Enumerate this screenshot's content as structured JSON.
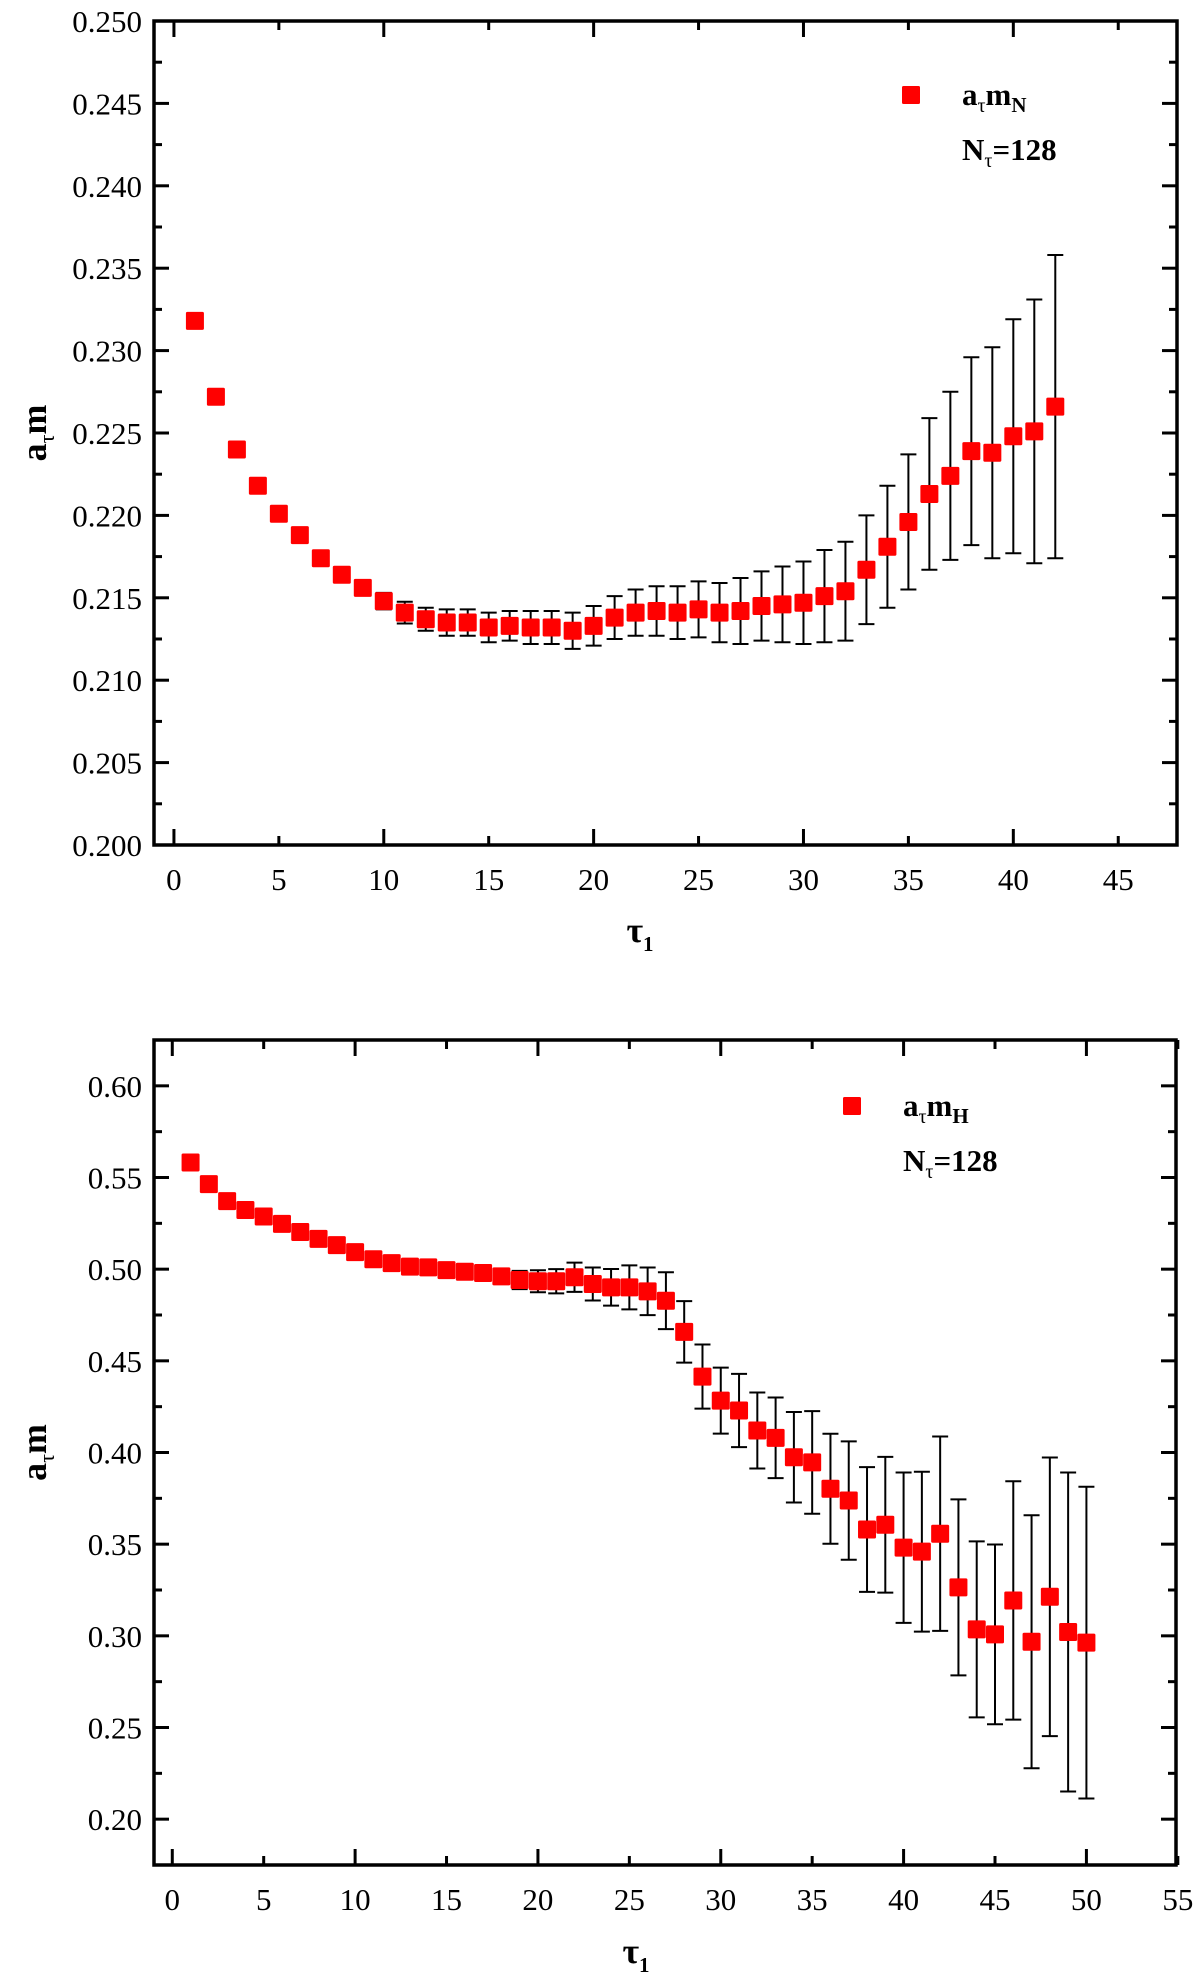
{
  "chart_data": [
    {
      "type": "scatter",
      "panel": "top",
      "title": "",
      "xlabel": "τ",
      "xlabel_sub": "1",
      "ylabel": "a",
      "ylabel_sub": "τ",
      "ylabel_tail": "m",
      "xlim": [
        -0.95,
        47.8
      ],
      "ylim": [
        0.2,
        0.25
      ],
      "x_ticks": [
        0,
        5,
        10,
        15,
        20,
        25,
        30,
        35,
        40,
        45
      ],
      "x_tick_labels": [
        "0",
        "5",
        "10",
        "15",
        "20",
        "25",
        "30",
        "35",
        "40",
        "45"
      ],
      "y_ticks": [
        0.2,
        0.205,
        0.21,
        0.215,
        0.22,
        0.225,
        0.23,
        0.235,
        0.24,
        0.245,
        0.25
      ],
      "y_tick_labels": [
        "0.200",
        "0.205",
        "0.210",
        "0.215",
        "0.220",
        "0.225",
        "0.230",
        "0.235",
        "0.240",
        "0.245",
        "0.250"
      ],
      "grid": false,
      "legend_position": "top-right",
      "legend": {
        "series_main": "a",
        "series_sub1": "τ",
        "series_mid": "m",
        "series_sub2": "N",
        "note_main": "N",
        "note_sub": "τ",
        "note_tail": "=128"
      },
      "marker_color": "#ff0000",
      "series": [
        {
          "name": "aτmN",
          "x": [
            1,
            2,
            3,
            4,
            5,
            6,
            7,
            8,
            9,
            10,
            11,
            12,
            13,
            14,
            15,
            16,
            17,
            18,
            19,
            20,
            21,
            22,
            23,
            24,
            25,
            26,
            27,
            28,
            29,
            30,
            31,
            32,
            33,
            34,
            35,
            36,
            37,
            38,
            39,
            40,
            41,
            42
          ],
          "y": [
            0.2318,
            0.2272,
            0.224,
            0.2218,
            0.2201,
            0.2188,
            0.2174,
            0.2164,
            0.2156,
            0.2148,
            0.2141,
            0.2137,
            0.2135,
            0.2135,
            0.2132,
            0.2133,
            0.2132,
            0.2132,
            0.213,
            0.2133,
            0.2138,
            0.2141,
            0.2142,
            0.2141,
            0.2143,
            0.2141,
            0.2142,
            0.2145,
            0.2146,
            0.2147,
            0.2151,
            0.2154,
            0.2167,
            0.2181,
            0.2196,
            0.2213,
            0.2224,
            0.2239,
            0.2238,
            0.2248,
            0.2251,
            0.2266
          ],
          "yerr": [
            0.0002,
            0.0002,
            0.0002,
            0.0002,
            0.0002,
            0.0002,
            0.0003,
            0.0003,
            0.0004,
            0.0005,
            0.00066,
            0.0007,
            0.0008,
            0.0008,
            0.0009,
            0.0009,
            0.001,
            0.001,
            0.0011,
            0.0012,
            0.0013,
            0.0014,
            0.0015,
            0.0016,
            0.0017,
            0.0018,
            0.002,
            0.0021,
            0.0023,
            0.0025,
            0.0028,
            0.003,
            0.0033,
            0.0037,
            0.0041,
            0.0046,
            0.0051,
            0.0057,
            0.0064,
            0.0071,
            0.008,
            0.0092
          ]
        }
      ]
    },
    {
      "type": "scatter",
      "panel": "bottom",
      "title": "",
      "xlabel": "τ",
      "xlabel_sub": "1",
      "ylabel": "a",
      "ylabel_sub": "τ",
      "ylabel_tail": "m",
      "xlim": [
        -1.0,
        54.9
      ],
      "ylim": [
        0.175,
        0.625
      ],
      "x_ticks": [
        0,
        5,
        10,
        15,
        20,
        25,
        30,
        35,
        40,
        45,
        50,
        55
      ],
      "x_tick_labels": [
        "0",
        "5",
        "10",
        "15",
        "20",
        "25",
        "30",
        "35",
        "40",
        "45",
        "50",
        "55"
      ],
      "y_ticks": [
        0.2,
        0.25,
        0.3,
        0.35,
        0.4,
        0.45,
        0.5,
        0.55,
        0.6
      ],
      "y_tick_labels": [
        "0.20",
        "0.25",
        "0.30",
        "0.35",
        "0.40",
        "0.45",
        "0.50",
        "0.55",
        "0.60"
      ],
      "grid": false,
      "legend_position": "top-right",
      "legend": {
        "series_main": "a",
        "series_sub1": "τ",
        "series_mid": "m",
        "series_sub2": "H",
        "note_main": "N",
        "note_sub": "τ",
        "note_tail": "=128"
      },
      "marker_color": "#ff0000",
      "series": [
        {
          "name": "aτmH",
          "x": [
            1,
            2,
            3,
            4,
            5,
            6,
            7,
            8,
            9,
            10,
            11,
            12,
            13,
            14,
            15,
            16,
            17,
            18,
            19,
            20,
            21,
            22,
            23,
            24,
            25,
            26,
            27,
            28,
            29,
            30,
            31,
            32,
            33,
            34,
            35,
            36,
            37,
            38,
            39,
            40,
            41,
            42,
            43,
            44,
            45,
            46,
            47,
            48,
            49,
            50
          ],
          "y": [
            0.5582,
            0.5464,
            0.5371,
            0.5323,
            0.5287,
            0.5247,
            0.5203,
            0.5165,
            0.5131,
            0.5093,
            0.5054,
            0.5033,
            0.5014,
            0.501,
            0.4995,
            0.4986,
            0.4979,
            0.4961,
            0.4941,
            0.4934,
            0.4934,
            0.4956,
            0.4919,
            0.4901,
            0.4901,
            0.4879,
            0.4828,
            0.4658,
            0.4414,
            0.4283,
            0.4229,
            0.412,
            0.408,
            0.3974,
            0.3946,
            0.3802,
            0.3738,
            0.358,
            0.3606,
            0.3481,
            0.3459,
            0.3557,
            0.3264,
            0.3035,
            0.3008,
            0.3193,
            0.2968,
            0.3213,
            0.3021,
            0.2963
          ],
          "yerr": [
            0.003,
            0.003,
            0.003,
            0.003,
            0.003,
            0.003,
            0.003,
            0.003,
            0.003,
            0.003,
            0.003,
            0.003,
            0.003,
            0.003,
            0.003,
            0.003,
            0.004,
            0.004,
            0.005,
            0.006,
            0.0066,
            0.008,
            0.009,
            0.01,
            0.012,
            0.013,
            0.0155,
            0.0168,
            0.0175,
            0.018,
            0.02,
            0.0207,
            0.022,
            0.0247,
            0.028,
            0.03,
            0.0323,
            0.034,
            0.037,
            0.041,
            0.0436,
            0.053,
            0.048,
            0.048,
            0.049,
            0.065,
            0.069,
            0.076,
            0.087,
            0.085
          ]
        }
      ]
    }
  ]
}
